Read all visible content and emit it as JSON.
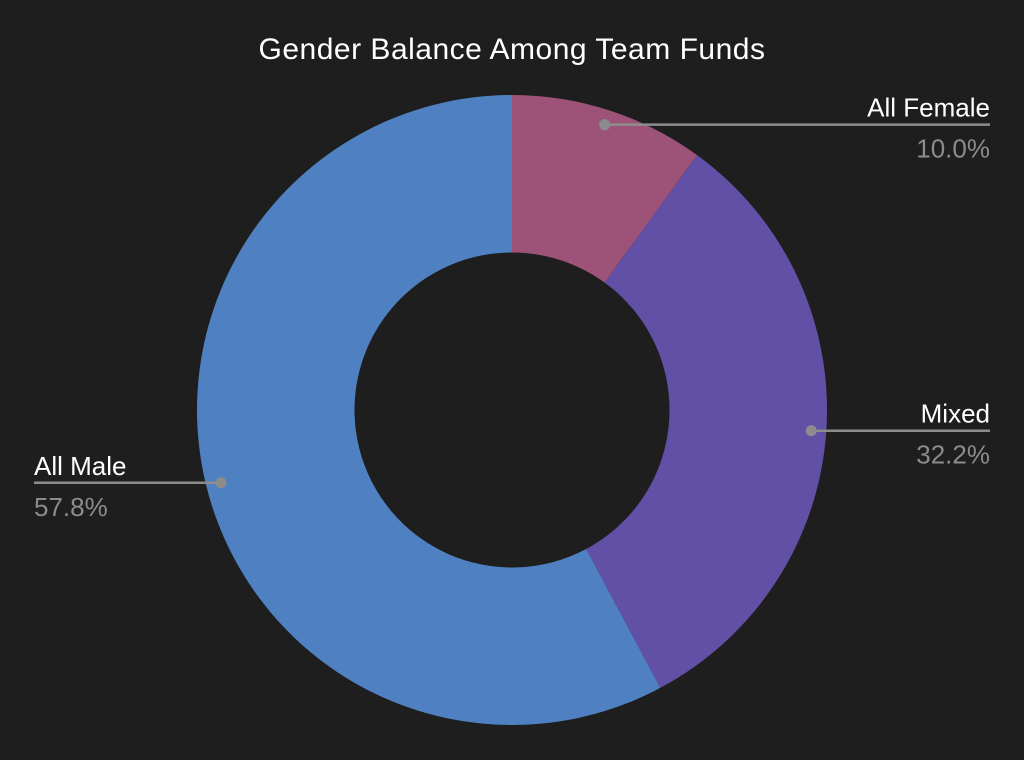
{
  "chart_data": {
    "type": "pie",
    "subtype": "donut",
    "title": "Gender Balance Among Team Funds",
    "categories": [
      "All Female",
      "Mixed",
      "All Male"
    ],
    "values": [
      10.0,
      32.2,
      57.8
    ],
    "pct_labels": [
      "10.0%",
      "32.2%",
      "57.8%"
    ],
    "slice_colors": [
      "#9C5377",
      "#6150A5",
      "#4F81C2"
    ],
    "layout_hints": {
      "start_angle": "top",
      "direction": "clockwise",
      "hole_ratio": 0.5,
      "legend": "none",
      "labels": "outside-with-leader-lines"
    },
    "style": {
      "background_color": "#1D1E1D",
      "title_color": "#FFFFFF",
      "label_color": "#FFFFFF",
      "pct_color": "#8C8C8C",
      "leader_line_color": "#8C8C8C"
    }
  }
}
